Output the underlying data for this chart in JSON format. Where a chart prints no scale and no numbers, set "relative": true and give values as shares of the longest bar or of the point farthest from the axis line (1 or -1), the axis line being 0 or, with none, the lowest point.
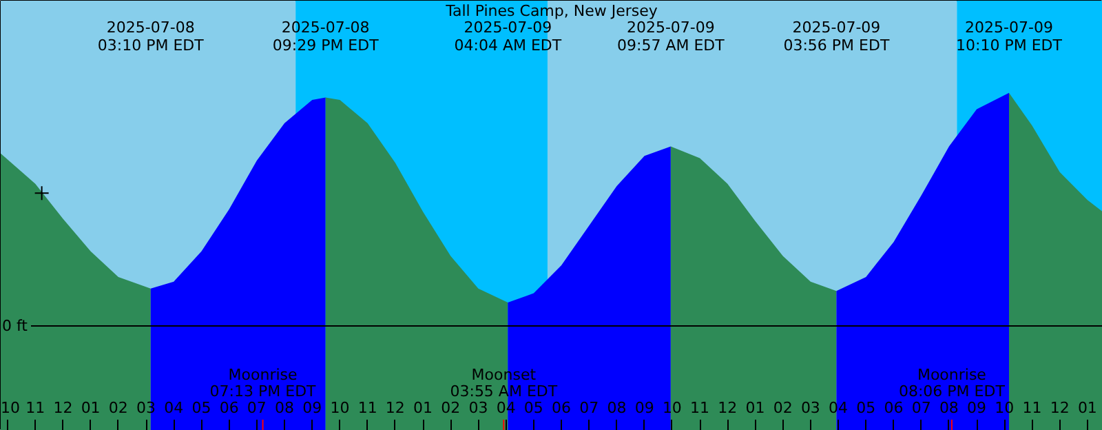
{
  "chart_data": {
    "type": "area",
    "title": "Tall Pines Camp, New Jersey",
    "relative": true,
    "series": [
      {
        "color": "#2e8b57",
        "x": [
          "2025-07-08T09:45",
          "2025-07-08T11:00",
          "2025-07-08T12:00",
          "2025-07-08T13:00",
          "2025-07-08T14:00",
          "2025-07-08T15:10"
        ],
        "values": [
          0.74,
          0.61,
          0.46,
          0.32,
          0.21,
          0.16
        ]
      },
      {
        "color": "#0000ff",
        "x": [
          "2025-07-08T15:10",
          "2025-07-08T16:00",
          "2025-07-08T17:00",
          "2025-07-08T18:00",
          "2025-07-08T19:00",
          "2025-07-08T20:00",
          "2025-07-08T21:00",
          "2025-07-08T21:29"
        ],
        "values": [
          0.16,
          0.19,
          0.32,
          0.5,
          0.71,
          0.87,
          0.97,
          0.98
        ]
      },
      {
        "color": "#2e8b57",
        "x": [
          "2025-07-08T21:29",
          "2025-07-08T22:00",
          "2025-07-08T23:00",
          "2025-07-09T00:00",
          "2025-07-09T01:00",
          "2025-07-09T02:00",
          "2025-07-09T03:00",
          "2025-07-09T04:04"
        ],
        "values": [
          0.98,
          0.97,
          0.87,
          0.7,
          0.49,
          0.3,
          0.16,
          0.1
        ]
      },
      {
        "color": "#0000ff",
        "x": [
          "2025-07-09T04:04",
          "2025-07-09T05:00",
          "2025-07-09T06:00",
          "2025-07-09T07:00",
          "2025-07-09T08:00",
          "2025-07-09T09:00",
          "2025-07-09T09:57"
        ],
        "values": [
          0.1,
          0.14,
          0.26,
          0.43,
          0.6,
          0.73,
          0.77
        ]
      },
      {
        "color": "#2e8b57",
        "x": [
          "2025-07-09T09:57",
          "2025-07-09T11:00",
          "2025-07-09T12:00",
          "2025-07-09T13:00",
          "2025-07-09T14:00",
          "2025-07-09T15:00",
          "2025-07-09T15:56"
        ],
        "values": [
          0.77,
          0.72,
          0.61,
          0.45,
          0.3,
          0.19,
          0.15
        ]
      },
      {
        "color": "#0000ff",
        "x": [
          "2025-07-09T15:56",
          "2025-07-09T17:00",
          "2025-07-09T18:00",
          "2025-07-09T19:00",
          "2025-07-09T20:00",
          "2025-07-09T21:00",
          "2025-07-09T22:10"
        ],
        "values": [
          0.15,
          0.21,
          0.36,
          0.56,
          0.77,
          0.93,
          1.0
        ]
      },
      {
        "color": "#2e8b57",
        "x": [
          "2025-07-09T22:10",
          "2025-07-09T23:00",
          "2025-07-10T00:00",
          "2025-07-10T01:00",
          "2025-07-10T01:33"
        ],
        "values": [
          1.0,
          0.86,
          0.66,
          0.54,
          0.49
        ]
      },
      {
        "type": "scatter",
        "marker": "cross",
        "color": "#000000",
        "x": [
          "2025-07-08T11:14"
        ],
        "values": [
          0.57
        ]
      }
    ],
    "xlim": [
      "2025-07-08T09:45",
      "2025-07-10T01:33"
    ],
    "xticks": [
      {
        "value": "2025-07-08T10:00",
        "label": "10"
      },
      {
        "value": "2025-07-08T11:00",
        "label": "11"
      },
      {
        "value": "2025-07-08T12:00",
        "label": "12"
      },
      {
        "value": "2025-07-08T13:00",
        "label": "01"
      },
      {
        "value": "2025-07-08T14:00",
        "label": "02"
      },
      {
        "value": "2025-07-08T15:00",
        "label": "03"
      },
      {
        "value": "2025-07-08T16:00",
        "label": "04"
      },
      {
        "value": "2025-07-08T17:00",
        "label": "05"
      },
      {
        "value": "2025-07-08T18:00",
        "label": "06"
      },
      {
        "value": "2025-07-08T19:00",
        "label": "07"
      },
      {
        "value": "2025-07-08T20:00",
        "label": "08"
      },
      {
        "value": "2025-07-08T21:00",
        "label": "09"
      },
      {
        "value": "2025-07-08T22:00",
        "label": "10"
      },
      {
        "value": "2025-07-08T23:00",
        "label": "11"
      },
      {
        "value": "2025-07-09T00:00",
        "label": "12"
      },
      {
        "value": "2025-07-09T01:00",
        "label": "01"
      },
      {
        "value": "2025-07-09T02:00",
        "label": "02"
      },
      {
        "value": "2025-07-09T03:00",
        "label": "03"
      },
      {
        "value": "2025-07-09T04:00",
        "label": "04"
      },
      {
        "value": "2025-07-09T05:00",
        "label": "05"
      },
      {
        "value": "2025-07-09T06:00",
        "label": "06"
      },
      {
        "value": "2025-07-09T07:00",
        "label": "07"
      },
      {
        "value": "2025-07-09T08:00",
        "label": "08"
      },
      {
        "value": "2025-07-09T09:00",
        "label": "09"
      },
      {
        "value": "2025-07-09T10:00",
        "label": "10"
      },
      {
        "value": "2025-07-09T11:00",
        "label": "11"
      },
      {
        "value": "2025-07-09T12:00",
        "label": "12"
      },
      {
        "value": "2025-07-09T13:00",
        "label": "01"
      },
      {
        "value": "2025-07-09T14:00",
        "label": "02"
      },
      {
        "value": "2025-07-09T15:00",
        "label": "03"
      },
      {
        "value": "2025-07-09T16:00",
        "label": "04"
      },
      {
        "value": "2025-07-09T17:00",
        "label": "05"
      },
      {
        "value": "2025-07-09T18:00",
        "label": "06"
      },
      {
        "value": "2025-07-09T19:00",
        "label": "07"
      },
      {
        "value": "2025-07-09T20:00",
        "label": "08"
      },
      {
        "value": "2025-07-09T21:00",
        "label": "09"
      },
      {
        "value": "2025-07-09T22:00",
        "label": "10"
      },
      {
        "value": "2025-07-09T23:00",
        "label": "11"
      },
      {
        "value": "2025-07-10T00:00",
        "label": "12"
      },
      {
        "value": "2025-07-10T01:00",
        "label": "01"
      }
    ],
    "bands": [
      {
        "axis": "x",
        "from": "2025-07-08T09:45",
        "to": "2025-07-08T20:24",
        "color": "#87ceeb"
      },
      {
        "axis": "x",
        "from": "2025-07-08T20:24",
        "to": "2025-07-09T05:30",
        "color": "#00bfff"
      },
      {
        "axis": "x",
        "from": "2025-07-09T05:30",
        "to": "2025-07-09T20:17",
        "color": "#87ceeb"
      },
      {
        "axis": "x",
        "from": "2025-07-09T20:17",
        "to": "2025-07-10T01:33",
        "color": "#00bfff"
      }
    ],
    "ref_lines": [
      {
        "axis": "y",
        "value": 0,
        "label": "0 ft",
        "color": "#000000"
      },
      {
        "axis": "x",
        "value": "2025-07-08T19:13",
        "label": "Moonrise\n07:13 PM EDT",
        "color": "#ff0000"
      },
      {
        "axis": "x",
        "value": "2025-07-09T03:55",
        "label": "Moonset\n03:55 AM EDT",
        "color": "#ff0000"
      },
      {
        "axis": "x",
        "value": "2025-07-09T20:06",
        "label": "Moonrise\n08:06 PM EDT",
        "color": "#ff0000"
      }
    ],
    "annotations": [
      "2025-07-08\n03:10 PM EDT",
      "2025-07-08\n09:29 PM EDT",
      "2025-07-09\n04:04 AM EDT",
      "2025-07-09\n09:57 AM EDT",
      "2025-07-09\n03:56 PM EDT",
      "2025-07-09\n10:10 PM EDT"
    ],
    "grid": false
  }
}
